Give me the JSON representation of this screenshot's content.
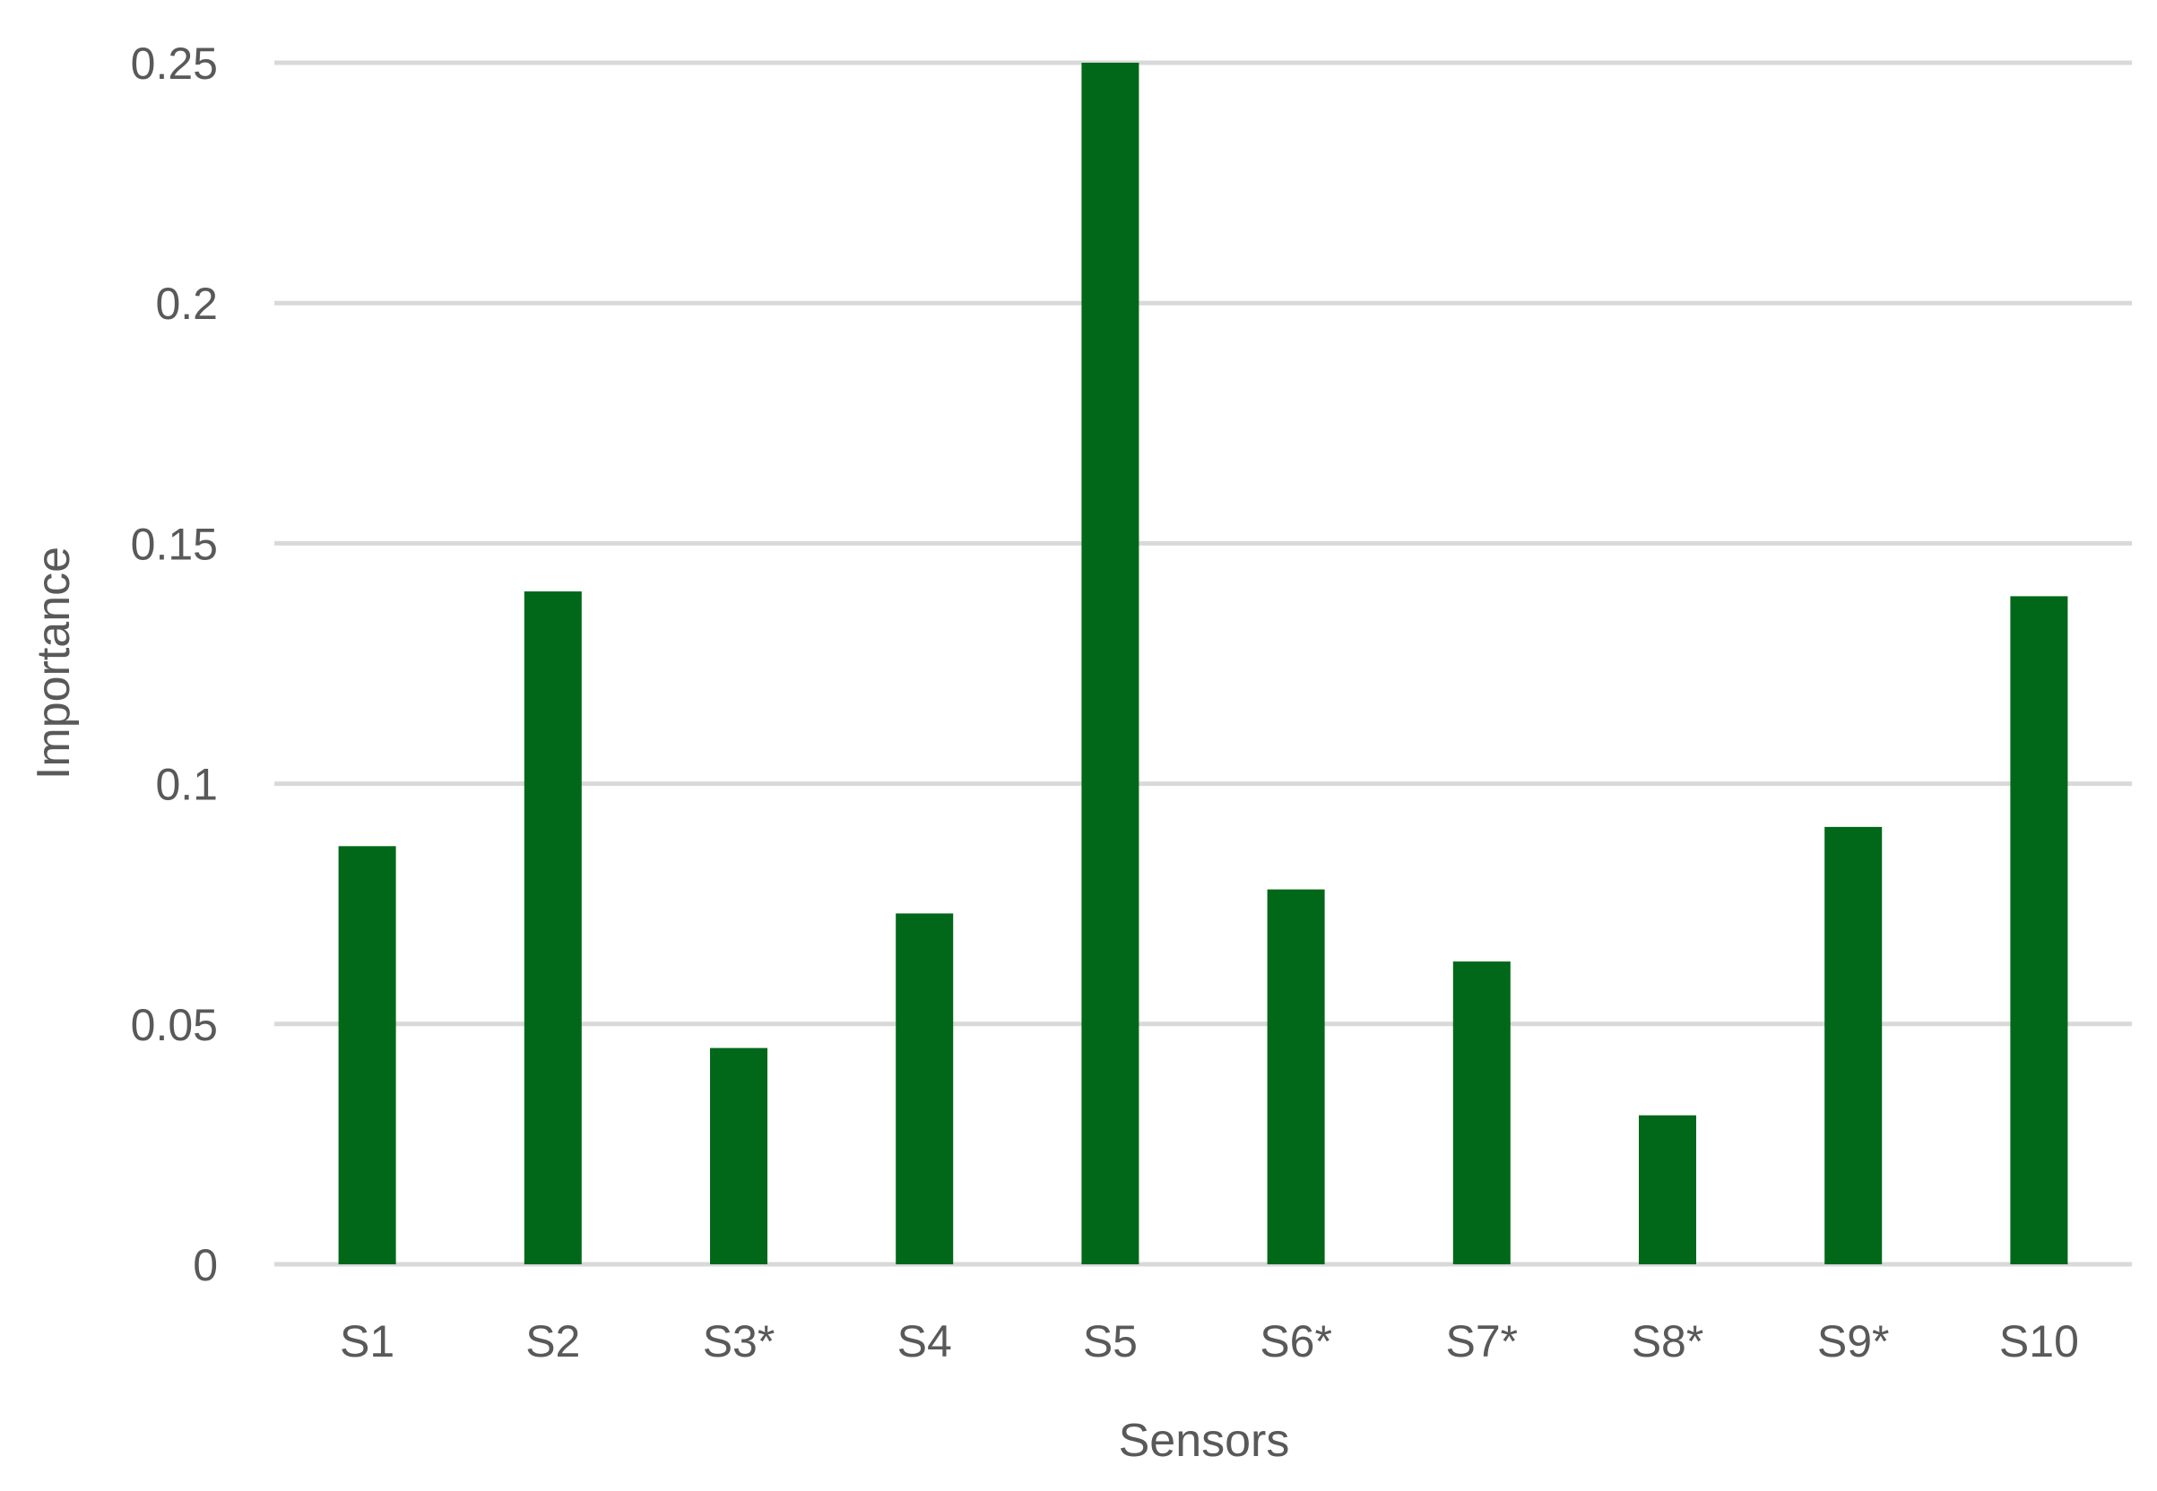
{
  "chart_data": {
    "type": "bar",
    "title": "",
    "xlabel": "Sensors",
    "ylabel": "Importance",
    "categories": [
      "S1",
      "S2",
      "S3*",
      "S4",
      "S5",
      "S6*",
      "S7*",
      "S8*",
      "S9*",
      "S10"
    ],
    "values": [
      0.087,
      0.14,
      0.045,
      0.073,
      0.25,
      0.078,
      0.063,
      0.031,
      0.091,
      0.139
    ],
    "ylim": [
      0,
      0.25
    ],
    "yticks": [
      0,
      0.05,
      0.1,
      0.15,
      0.2,
      0.25
    ],
    "ytick_labels": [
      "0",
      "0.05",
      "0.1",
      "0.15",
      "0.2",
      "0.25"
    ],
    "grid": true,
    "legend": "none",
    "colors": {
      "bar": "#006818",
      "grid": "#d9d9d9",
      "text": "#595959"
    }
  }
}
